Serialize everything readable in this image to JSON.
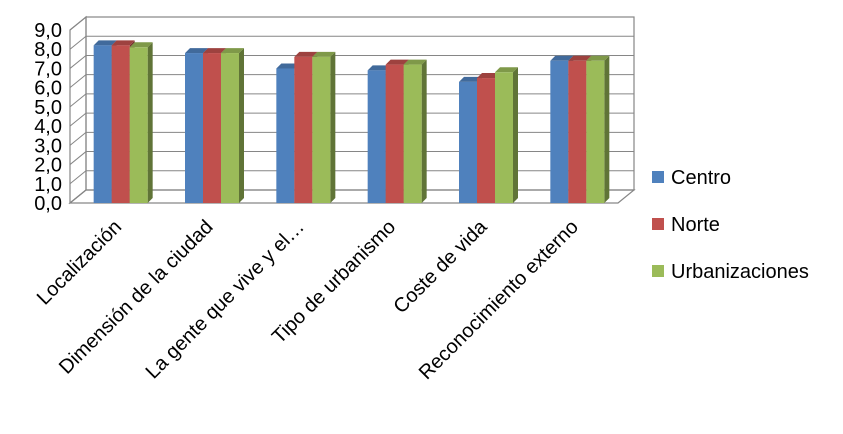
{
  "chart_data": {
    "type": "bar",
    "style": "3d-clustered-column",
    "title": "",
    "xlabel": "",
    "ylabel": "",
    "ylim": [
      0,
      9
    ],
    "y_tick_step": 1,
    "y_tick_labels": [
      "0,0",
      "1,0",
      "2,0",
      "3,0",
      "4,0",
      "5,0",
      "6,0",
      "7,0",
      "8,0",
      "9,0"
    ],
    "grid": true,
    "legend_position": "right",
    "categories": [
      "Localización",
      "Dimensión de la ciudad",
      "La gente que vive y el…",
      "Tipo de urbanismo",
      "Coste de vida",
      "Reconocimiento externo"
    ],
    "series": [
      {
        "name": "Centro",
        "color": "#4F81BD",
        "values": [
          8.2,
          7.8,
          7.0,
          6.9,
          6.3,
          7.4
        ]
      },
      {
        "name": "Norte",
        "color": "#C0504D",
        "values": [
          8.2,
          7.8,
          7.6,
          7.2,
          6.5,
          7.4
        ]
      },
      {
        "name": "Urbanizaciones",
        "color": "#9BBB59",
        "values": [
          8.1,
          7.8,
          7.6,
          7.2,
          6.8,
          7.4
        ]
      }
    ]
  }
}
